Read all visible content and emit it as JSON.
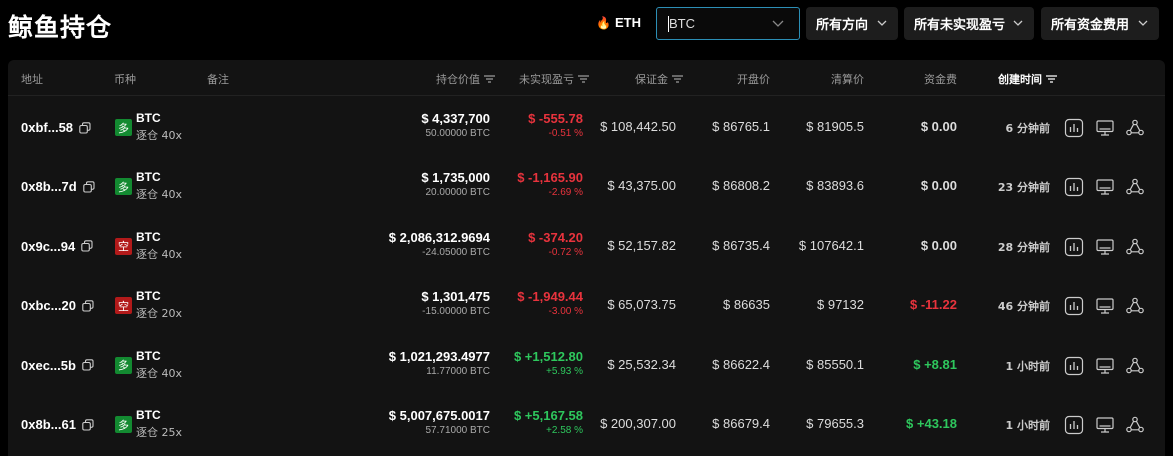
{
  "page_title": "鲸鱼持仓",
  "eth_chip": "ETH",
  "search": {
    "value": "BTC"
  },
  "filters": {
    "direction": "所有方向",
    "pnl": "所有未实现盈亏",
    "funding": "所有资金费用"
  },
  "columns": {
    "address": "地址",
    "coin": "币种",
    "note": "备注",
    "position_value": "持仓价值",
    "unrealized_pnl": "未实现盈亏",
    "margin": "保证金",
    "entry_price": "开盘价",
    "liq_price": "清算价",
    "funding_fee": "资金费",
    "created": "创建时间"
  },
  "rows": [
    {
      "address": "0xbf...58",
      "side": "多",
      "side_type": "long",
      "coin": "BTC",
      "leverage": "逐仓 40x",
      "value": "$ 4,337,700",
      "qty": "50.00000 BTC",
      "pnl": "$ -555.78",
      "pnl_pct": "-0.51 %",
      "pnl_sign": "neg",
      "margin": "$ 108,442.50",
      "entry": "$ 86765.1",
      "liq": "$ 81905.5",
      "funding": "$ 0.00",
      "funding_sign": "neutral",
      "time": "6 分钟前"
    },
    {
      "address": "0x8b...7d",
      "side": "多",
      "side_type": "long",
      "coin": "BTC",
      "leverage": "逐仓 40x",
      "value": "$ 1,735,000",
      "qty": "20.00000 BTC",
      "pnl": "$ -1,165.90",
      "pnl_pct": "-2.69 %",
      "pnl_sign": "neg",
      "margin": "$ 43,375.00",
      "entry": "$ 86808.2",
      "liq": "$ 83893.6",
      "funding": "$ 0.00",
      "funding_sign": "neutral",
      "time": "23 分钟前"
    },
    {
      "address": "0x9c...94",
      "side": "空",
      "side_type": "short",
      "coin": "BTC",
      "leverage": "逐仓 40x",
      "value": "$ 2,086,312.9694",
      "qty": "-24.05000 BTC",
      "pnl": "$ -374.20",
      "pnl_pct": "-0.72 %",
      "pnl_sign": "neg",
      "margin": "$ 52,157.82",
      "entry": "$ 86735.4",
      "liq": "$ 107642.1",
      "funding": "$ 0.00",
      "funding_sign": "neutral",
      "time": "28 分钟前"
    },
    {
      "address": "0xbc...20",
      "side": "空",
      "side_type": "short",
      "coin": "BTC",
      "leverage": "逐仓 20x",
      "value": "$ 1,301,475",
      "qty": "-15.00000 BTC",
      "pnl": "$ -1,949.44",
      "pnl_pct": "-3.00 %",
      "pnl_sign": "neg",
      "margin": "$ 65,073.75",
      "entry": "$ 86635",
      "liq": "$ 97132",
      "funding": "$ -11.22",
      "funding_sign": "neg",
      "time": "46 分钟前"
    },
    {
      "address": "0xec...5b",
      "side": "多",
      "side_type": "long",
      "coin": "BTC",
      "leverage": "逐仓 40x",
      "value": "$ 1,021,293.4977",
      "qty": "11.77000 BTC",
      "pnl": "$ +1,512.80",
      "pnl_pct": "+5.93 %",
      "pnl_sign": "pos",
      "margin": "$ 25,532.34",
      "entry": "$ 86622.4",
      "liq": "$ 85550.1",
      "funding": "$ +8.81",
      "funding_sign": "pos",
      "time": "1 小时前"
    },
    {
      "address": "0x8b...61",
      "side": "多",
      "side_type": "long",
      "coin": "BTC",
      "leverage": "逐仓 25x",
      "value": "$ 5,007,675.0017",
      "qty": "57.71000 BTC",
      "pnl": "$ +5,167.58",
      "pnl_pct": "+2.58 %",
      "pnl_sign": "pos",
      "margin": "$ 200,307.00",
      "entry": "$ 86679.4",
      "liq": "$ 79655.3",
      "funding": "$ +43.18",
      "funding_sign": "pos",
      "time": "1 小时前"
    }
  ]
}
